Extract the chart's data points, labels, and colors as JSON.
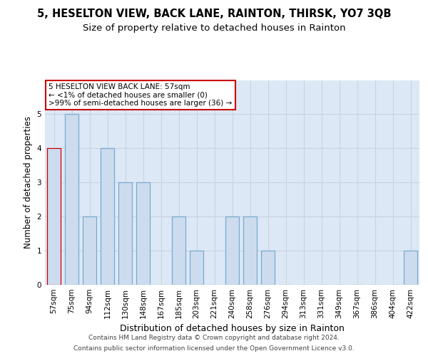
{
  "title1": "5, HESELTON VIEW, BACK LANE, RAINTON, THIRSK, YO7 3QB",
  "title2": "Size of property relative to detached houses in Rainton",
  "xlabel": "Distribution of detached houses by size in Rainton",
  "ylabel": "Number of detached properties",
  "categories": [
    "57sqm",
    "75sqm",
    "94sqm",
    "112sqm",
    "130sqm",
    "148sqm",
    "167sqm",
    "185sqm",
    "203sqm",
    "221sqm",
    "240sqm",
    "258sqm",
    "276sqm",
    "294sqm",
    "313sqm",
    "331sqm",
    "349sqm",
    "367sqm",
    "386sqm",
    "404sqm",
    "422sqm"
  ],
  "values": [
    4,
    5,
    2,
    4,
    3,
    3,
    0,
    2,
    1,
    0,
    2,
    2,
    1,
    0,
    0,
    0,
    0,
    0,
    0,
    0,
    1
  ],
  "bar_color": "#ccdcee",
  "bar_edge_color": "#7aaad0",
  "highlight_index": 0,
  "highlight_edge_color": "#cc0000",
  "annotation_box_text": "5 HESELTON VIEW BACK LANE: 57sqm\n← <1% of detached houses are smaller (0)\n>99% of semi-detached houses are larger (36) →",
  "annotation_box_color": "#ffffff",
  "annotation_box_edge_color": "#cc0000",
  "ylim": [
    0,
    6
  ],
  "yticks": [
    0,
    1,
    2,
    3,
    4,
    5,
    6
  ],
  "grid_color": "#c8d4e0",
  "background_color": "#dce8f5",
  "footer1": "Contains HM Land Registry data © Crown copyright and database right 2024.",
  "footer2": "Contains public sector information licensed under the Open Government Licence v3.0.",
  "title1_fontsize": 10.5,
  "title2_fontsize": 9.5,
  "xlabel_fontsize": 9,
  "ylabel_fontsize": 8.5,
  "tick_fontsize": 7.5,
  "annotation_fontsize": 7.5,
  "footer_fontsize": 6.5
}
